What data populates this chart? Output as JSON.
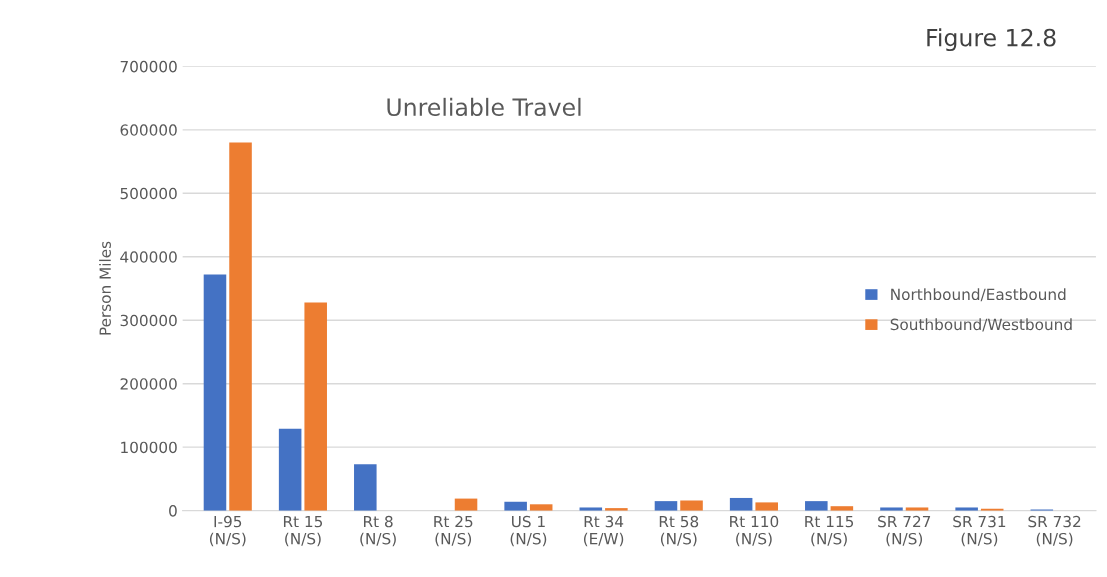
{
  "chart_data": {
    "type": "bar",
    "title": "Unreliable Travel",
    "ylabel": "Person Miles",
    "annotations": [
      "Figure 12.8"
    ],
    "categories": [
      "I-95\n(N/S)",
      "Rt 15\n(N/S)",
      "Rt 8\n(N/S)",
      "Rt 25\n(N/S)",
      "US 1\n(N/S)",
      "Rt 34\n(E/W)",
      "Rt 58\n(N/S)",
      "Rt 110\n(N/S)",
      "Rt 115\n(N/S)",
      "SR 727\n(N/S)",
      "SR 731\n(N/S)",
      "SR 732\n(N/S)"
    ],
    "series": [
      {
        "name": "Northbound/Eastbound",
        "color": "#4472c4",
        "values": [
          372000,
          129000,
          73000,
          0,
          14000,
          5000,
          15000,
          20000,
          15000,
          5000,
          5000,
          2000
        ]
      },
      {
        "name": "Southbound/Westbound",
        "color": "#ed7d31",
        "values": [
          580000,
          328000,
          0,
          19000,
          10000,
          4000,
          16000,
          13000,
          7000,
          5000,
          3000,
          0
        ]
      }
    ],
    "ylim": [
      0,
      700000
    ],
    "yticks": [
      0,
      100000,
      200000,
      300000,
      400000,
      500000,
      600000,
      700000
    ],
    "grid": "y",
    "legend": "right"
  }
}
